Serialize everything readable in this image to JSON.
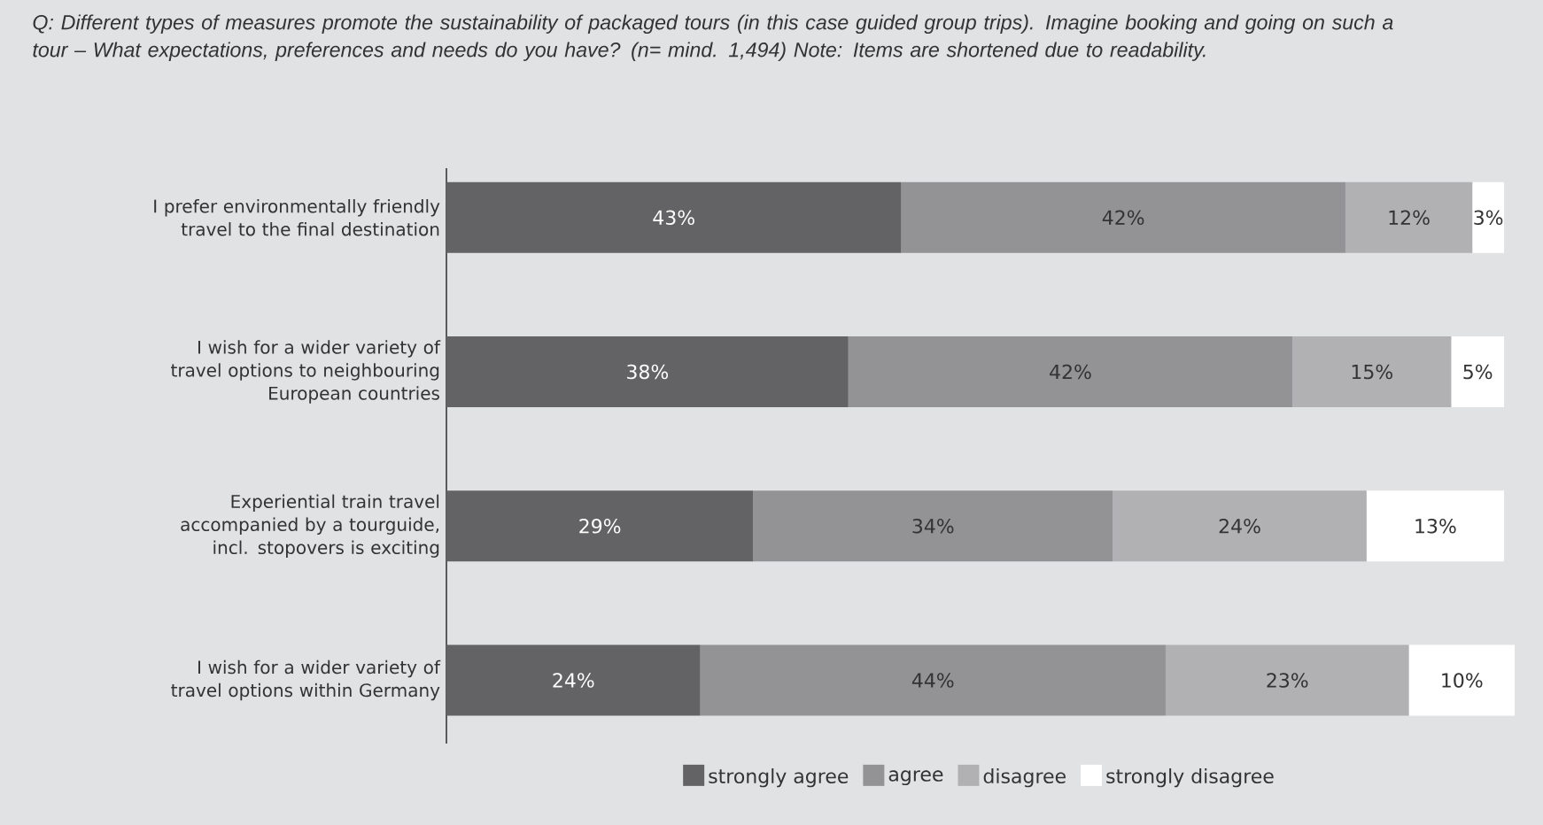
{
  "chart_data": {
    "type": "bar",
    "orientation": "horizontal",
    "stacked": true,
    "legend": "bottom",
    "title": "Q: Different types of measures promote the sustainability of packaged tours (in this case guided group trips). Imagine booking and going on such a tour – What expectations, preferences and needs do you have? (n= mind. 1,494) Note: Items are shortened due to readability.",
    "categories": [
      "I prefer environmentally friendly travel to the final destination",
      "I wish for a wider variety of travel options to neighbouring European countries",
      "Experiential train travel accompanied by a tourguide, incl. stopovers is exciting",
      "I wish for a wider variety of travel options within Germany"
    ],
    "series": [
      {
        "name": "strongly agree",
        "color": "#636365",
        "values": [
          43,
          38,
          29,
          24
        ],
        "value_labels": [
          "43%",
          "38%",
          "29%",
          "24%"
        ]
      },
      {
        "name": "agree",
        "color": "#939396",
        "values": [
          42,
          42,
          34,
          44
        ],
        "value_labels": [
          "42%",
          "42%",
          "34%",
          "44%"
        ]
      },
      {
        "name": "disagree",
        "color": "#b1b1b4",
        "values": [
          12,
          15,
          24,
          23
        ],
        "value_labels": [
          "12%",
          "15%",
          "24%",
          "23%"
        ]
      },
      {
        "name": "strongly disagree",
        "color": "#ffffff",
        "values": [
          3,
          5,
          13,
          10
        ],
        "value_labels": [
          "3%",
          "5%",
          "13%",
          "10%"
        ]
      }
    ]
  }
}
